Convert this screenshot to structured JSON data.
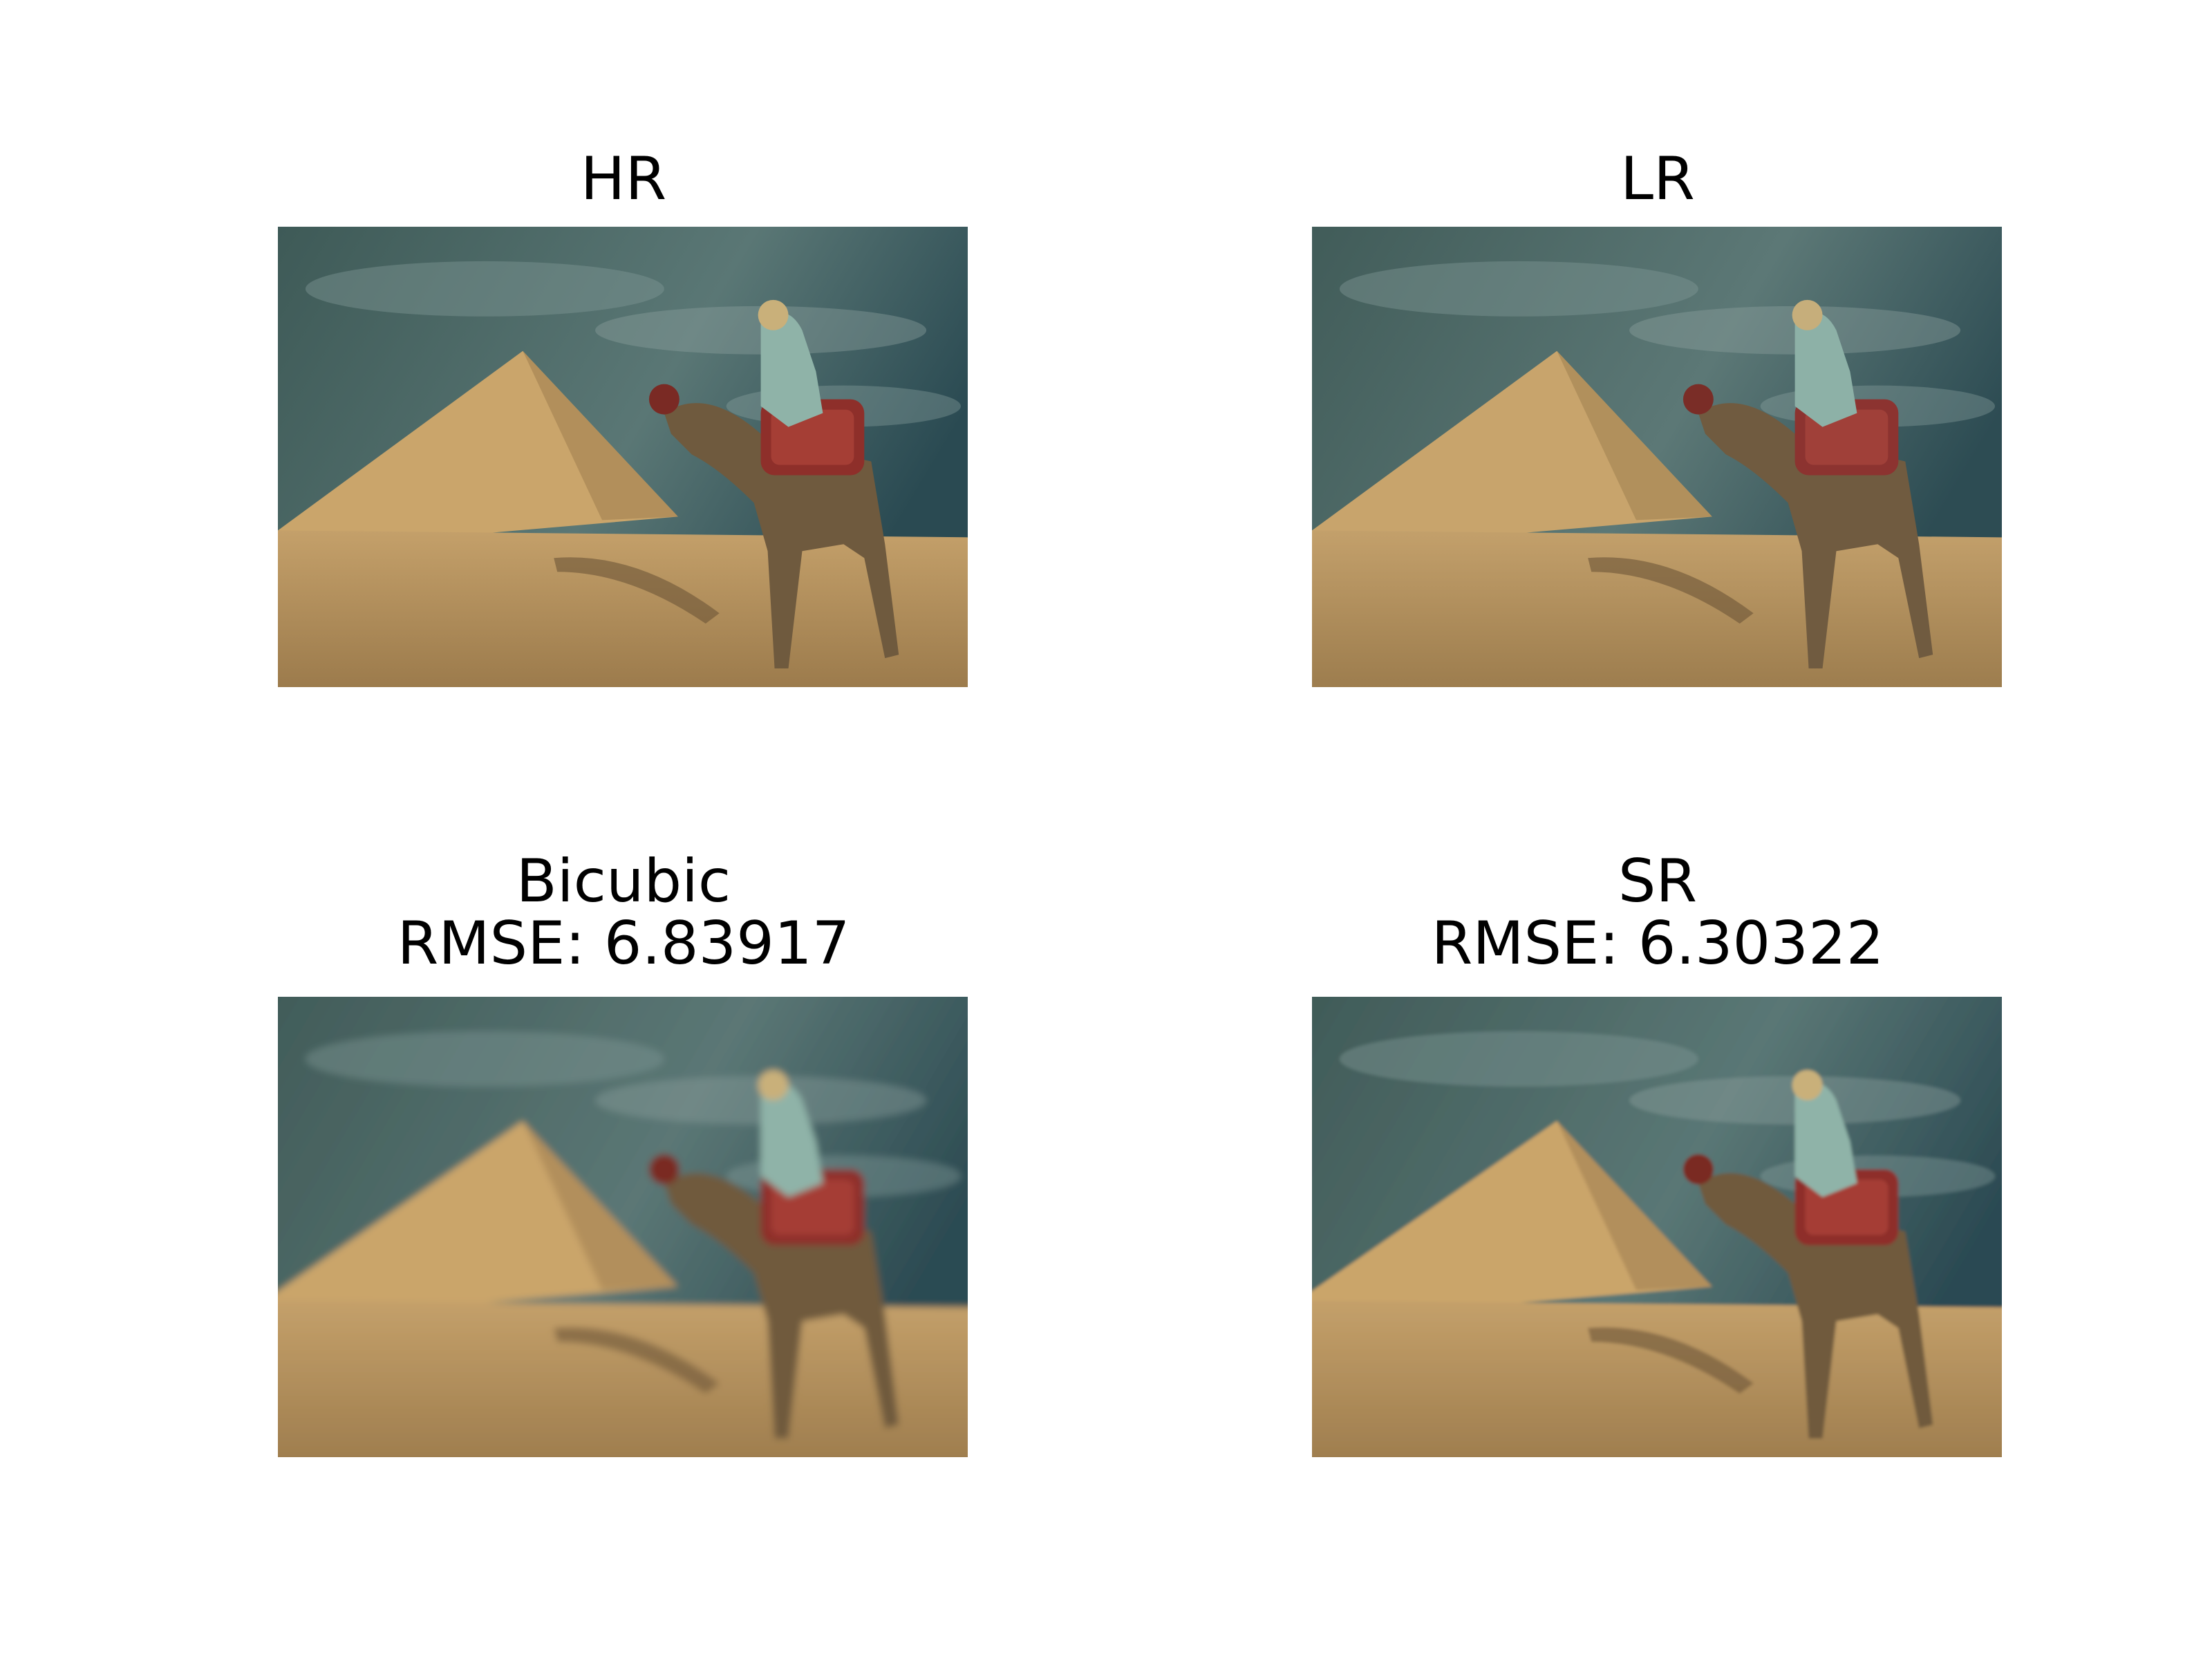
{
  "panels": {
    "hr": {
      "title": "HR"
    },
    "lr": {
      "title": "LR"
    },
    "bicubic": {
      "title": "Bicubic",
      "metric": "RMSE: 6.83917"
    },
    "sr": {
      "title": "SR",
      "metric": "RMSE: 6.30322"
    }
  },
  "colors": {
    "sky_light": "#4f6f6a",
    "sky_dark": "#2f4b4d",
    "cloud": "#7f9694",
    "sand_light": "#c9a46b",
    "sand_dark": "#9a7a4b",
    "pyramid": "#caa56b",
    "pyramid_shade": "#a88654",
    "camel": "#6f5a3e",
    "blanket": "#8e2f2a",
    "rider": "#8fb3a8"
  }
}
